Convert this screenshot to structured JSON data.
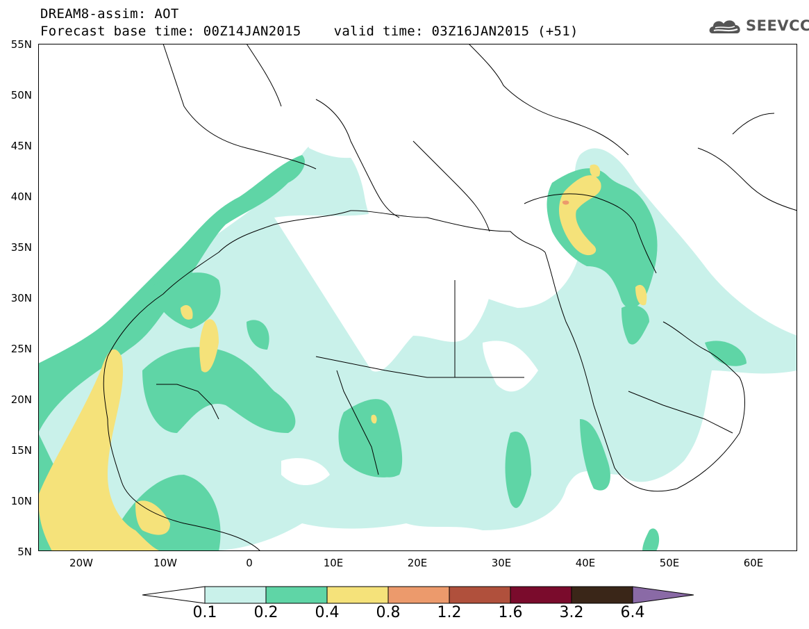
{
  "header": {
    "line1": "DREAM8-assim: AOT",
    "line2": "Forecast base time: 00Z14JAN2015    valid time: 03Z16JAN2015 (+51)"
  },
  "logo": {
    "text": "SEEVCCC",
    "icon": "cloud-icon"
  },
  "map": {
    "lon_range": [
      -25,
      65
    ],
    "lat_range": [
      5,
      55
    ],
    "lat_labels": [
      "55N",
      "50N",
      "45N",
      "40N",
      "35N",
      "30N",
      "25N",
      "20N",
      "15N",
      "10N",
      "5N"
    ],
    "lon_labels": [
      "20W",
      "10W",
      "0",
      "10E",
      "20E",
      "30E",
      "40E",
      "50E",
      "60E"
    ]
  },
  "colorbar": {
    "thresholds": [
      "0.1",
      "0.2",
      "0.4",
      "0.8",
      "1.2",
      "1.6",
      "3.2",
      "6.4"
    ],
    "colors": [
      "#ffffff",
      "#c9f1ea",
      "#5fd5a6",
      "#f5e27a",
      "#ec9a6c",
      "#b0503c",
      "#7a0b2c",
      "#3a2618",
      "#8a6aa6"
    ]
  }
}
